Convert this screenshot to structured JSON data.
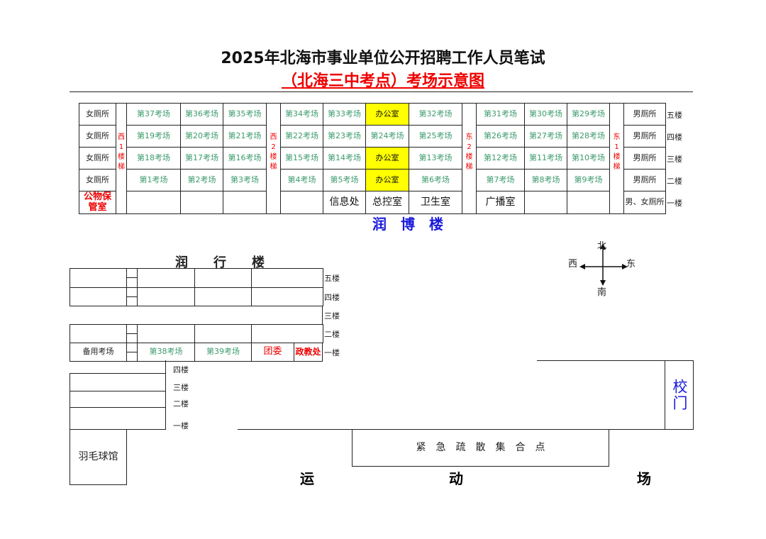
{
  "title": "2025年北海市事业单位公开招聘工作人员笔试",
  "subtitle": "（北海三中考点）考场示意图",
  "colors": {
    "room": "#3d9b6e",
    "office_highlight": "#ffff00",
    "red": "#e00000",
    "blue": "#1a1adb"
  },
  "runbo": {
    "name": "润　博　楼",
    "stairs": [
      "西1楼梯",
      "西2楼梯",
      "东2楼梯",
      "东1楼梯"
    ],
    "rows": [
      {
        "left": "女厕所",
        "rooms": [
          "第37考场",
          "第36考场",
          "第35考场",
          "第34考场",
          "第33考场",
          "办公室",
          "第32考场",
          "第31考场",
          "第30考场",
          "第29考场"
        ],
        "right": "男厕所",
        "floor": "五楼"
      },
      {
        "left": "女厕所",
        "rooms": [
          "第19考场",
          "第20考场",
          "第21考场",
          "第22考场",
          "第23考场",
          "第24考场",
          "第25考场",
          "第26考场",
          "第27考场",
          "第28考场"
        ],
        "right": "男厕所",
        "floor": "四楼"
      },
      {
        "left": "女厕所",
        "rooms": [
          "第18考场",
          "第17考场",
          "第16考场",
          "第15考场",
          "第14考场",
          "办公室",
          "第13考场",
          "第12考场",
          "第11考场",
          "第10考场"
        ],
        "right": "男厕所",
        "floor": "三楼"
      },
      {
        "left": "女厕所",
        "rooms": [
          "第1考场",
          "第2考场",
          "第3考场",
          "第4考场",
          "第5考场",
          "办公室",
          "第6考场",
          "第7考场",
          "第8考场",
          "第9考场"
        ],
        "right": "男厕所",
        "floor": "二楼"
      },
      {
        "left": "公物保管室",
        "rooms": [
          "",
          "",
          "",
          "",
          "信息处",
          "总控室",
          "卫生室",
          "广播室",
          "",
          ""
        ],
        "right": "男、女厕所",
        "floor": "一楼"
      }
    ]
  },
  "runxing": {
    "name": "润　　行　　楼",
    "floors": [
      "五楼",
      "四楼",
      "三楼",
      "二楼",
      "一楼"
    ],
    "ground": [
      "备用考场",
      "第38考场",
      "第39考场",
      "团委",
      "政教处"
    ]
  },
  "small_building": {
    "floors": [
      "四楼",
      "三楼",
      "二楼",
      "一楼"
    ]
  },
  "badminton": "羽毛球馆",
  "gate": "校门",
  "assembly": "紧　急　疏　散　集　合　点",
  "field": [
    "运",
    "动",
    "场"
  ],
  "compass": {
    "n": "北",
    "s": "南",
    "w": "西",
    "e": "东"
  }
}
